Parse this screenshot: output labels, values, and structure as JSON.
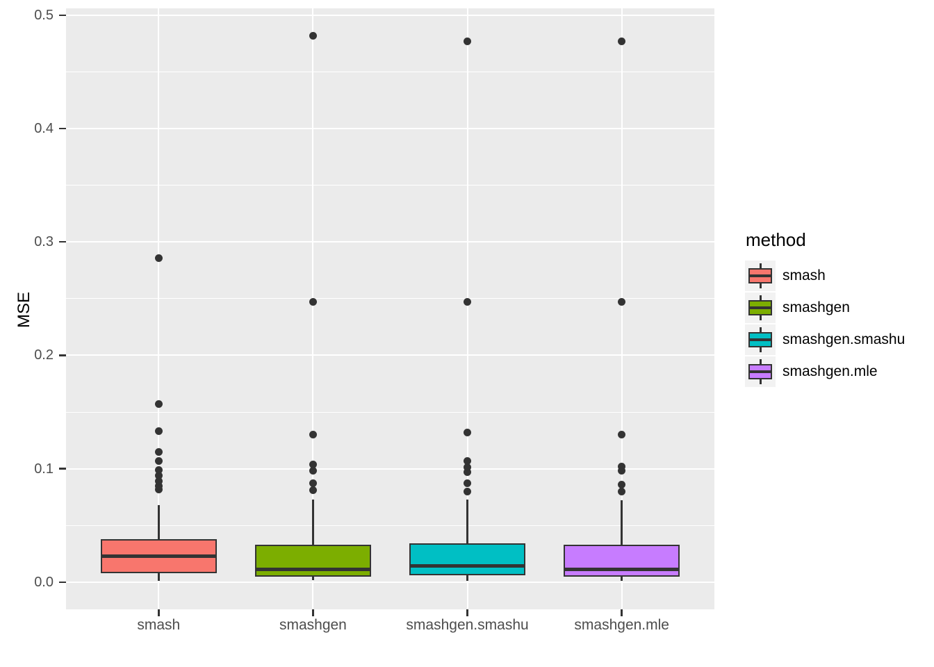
{
  "chart_data": {
    "type": "boxplot",
    "title": "",
    "xlabel": "",
    "ylabel": "MSE",
    "legend_title": "method",
    "legend_position": "right",
    "grid": true,
    "panel_background": "#EBEBEB",
    "gridline_color": "#ffffff",
    "axis_text_color": "#4D4D4D",
    "box_line_color": "#333333",
    "categories": [
      "smash",
      "smashgen",
      "smashgen.smashu",
      "smashgen.mle"
    ],
    "y_ticks": [
      0.0,
      0.1,
      0.2,
      0.3,
      0.4,
      0.5
    ],
    "y_tick_labels": [
      "0.0",
      "0.1",
      "0.2",
      "0.3",
      "0.4",
      "0.5"
    ],
    "y_minor_ticks": [
      0.05,
      0.15,
      0.25,
      0.35,
      0.45
    ],
    "ylim": [
      -0.024,
      0.506
    ],
    "series": [
      {
        "name": "smash",
        "color": "#F8766D",
        "whisker_low": 0.001,
        "q1": 0.008,
        "median": 0.023,
        "q3": 0.038,
        "whisker_high": 0.068,
        "outliers": [
          0.082,
          0.085,
          0.089,
          0.094,
          0.099,
          0.107,
          0.115,
          0.133,
          0.157,
          0.286
        ]
      },
      {
        "name": "smashgen",
        "color": "#7CAE00",
        "whisker_low": 0.002,
        "q1": 0.005,
        "median": 0.011,
        "q3": 0.033,
        "whisker_high": 0.073,
        "outliers": [
          0.081,
          0.087,
          0.098,
          0.104,
          0.13,
          0.247,
          0.482
        ]
      },
      {
        "name": "smashgen.smashu",
        "color": "#00BFC4",
        "whisker_low": 0.001,
        "q1": 0.006,
        "median": 0.014,
        "q3": 0.034,
        "whisker_high": 0.073,
        "outliers": [
          0.08,
          0.087,
          0.097,
          0.101,
          0.107,
          0.132,
          0.247,
          0.477
        ]
      },
      {
        "name": "smashgen.mle",
        "color": "#C77CFF",
        "whisker_low": 0.001,
        "q1": 0.005,
        "median": 0.011,
        "q3": 0.033,
        "whisker_high": 0.072,
        "outliers": [
          0.08,
          0.086,
          0.098,
          0.102,
          0.13,
          0.247,
          0.477
        ]
      }
    ]
  }
}
